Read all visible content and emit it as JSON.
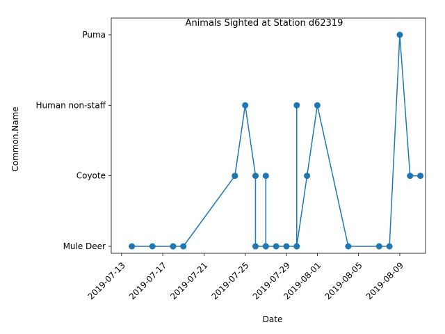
{
  "chart_data": {
    "type": "line",
    "title": "Animals Sighted at Station d62319",
    "xlabel": "Date",
    "ylabel": "Common.Name",
    "categories_y": [
      "Mule Deer",
      "Coyote",
      "Human non-staff",
      "Puma"
    ],
    "x_ticks": [
      "2019-07-13",
      "2019-07-17",
      "2019-07-21",
      "2019-07-25",
      "2019-07-29",
      "2019-08-01",
      "2019-08-05",
      "2019-08-09"
    ],
    "xlim": [
      "2019-07-12",
      "2019-08-11"
    ],
    "grid": false,
    "color": "#1f77b4",
    "series": [
      {
        "points": [
          {
            "x": "2019-07-14",
            "y": "Mule Deer"
          },
          {
            "x": "2019-07-16",
            "y": "Mule Deer"
          },
          {
            "x": "2019-07-18",
            "y": "Mule Deer"
          },
          {
            "x": "2019-07-18",
            "y": "Mule Deer"
          },
          {
            "x": "2019-07-19",
            "y": "Mule Deer"
          },
          {
            "x": "2019-07-24",
            "y": "Coyote"
          },
          {
            "x": "2019-07-25",
            "y": "Human non-staff"
          },
          {
            "x": "2019-07-26",
            "y": "Coyote"
          },
          {
            "x": "2019-07-26",
            "y": "Mule Deer"
          },
          {
            "x": "2019-07-27",
            "y": "Mule Deer"
          },
          {
            "x": "2019-07-27",
            "y": "Coyote"
          },
          {
            "x": "2019-07-27",
            "y": "Mule Deer"
          },
          {
            "x": "2019-07-28",
            "y": "Mule Deer"
          },
          {
            "x": "2019-07-29",
            "y": "Mule Deer"
          },
          {
            "x": "2019-07-30",
            "y": "Mule Deer"
          },
          {
            "x": "2019-07-30",
            "y": "Human non-staff"
          },
          {
            "x": "2019-07-30",
            "y": "Mule Deer"
          },
          {
            "x": "2019-07-31",
            "y": "Coyote"
          },
          {
            "x": "2019-08-01",
            "y": "Human non-staff"
          },
          {
            "x": "2019-08-04",
            "y": "Mule Deer"
          },
          {
            "x": "2019-08-07",
            "y": "Mule Deer"
          },
          {
            "x": "2019-08-08",
            "y": "Mule Deer"
          },
          {
            "x": "2019-08-09",
            "y": "Puma"
          },
          {
            "x": "2019-08-10",
            "y": "Coyote"
          },
          {
            "x": "2019-08-11",
            "y": "Coyote"
          }
        ]
      }
    ]
  }
}
